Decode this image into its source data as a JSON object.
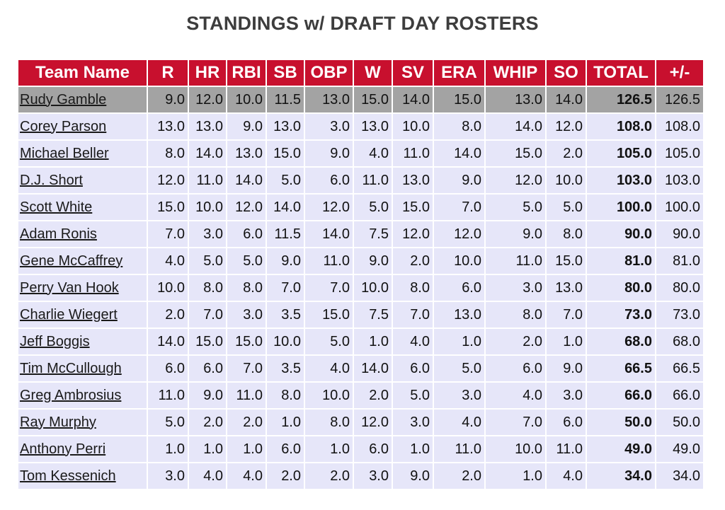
{
  "title": "STANDINGS w/ DRAFT DAY ROSTERS",
  "columns": [
    "Team Name",
    "R",
    "HR",
    "RBI",
    "SB",
    "OBP",
    "W",
    "SV",
    "ERA",
    "WHIP",
    "SO",
    "TOTAL",
    "+/-"
  ],
  "rows": [
    {
      "team": "Rudy Gamble",
      "vals": [
        "9.0",
        "12.0",
        "10.0",
        "11.5",
        "13.0",
        "15.0",
        "14.0",
        "15.0",
        "13.0",
        "14.0",
        "126.5",
        "126.5"
      ]
    },
    {
      "team": "Corey Parson",
      "vals": [
        "13.0",
        "13.0",
        "9.0",
        "13.0",
        "3.0",
        "13.0",
        "10.0",
        "8.0",
        "14.0",
        "12.0",
        "108.0",
        "108.0"
      ]
    },
    {
      "team": "Michael Beller",
      "vals": [
        "8.0",
        "14.0",
        "13.0",
        "15.0",
        "9.0",
        "4.0",
        "11.0",
        "14.0",
        "15.0",
        "2.0",
        "105.0",
        "105.0"
      ]
    },
    {
      "team": "D.J. Short",
      "vals": [
        "12.0",
        "11.0",
        "14.0",
        "5.0",
        "6.0",
        "11.0",
        "13.0",
        "9.0",
        "12.0",
        "10.0",
        "103.0",
        "103.0"
      ]
    },
    {
      "team": "Scott White",
      "vals": [
        "15.0",
        "10.0",
        "12.0",
        "14.0",
        "12.0",
        "5.0",
        "15.0",
        "7.0",
        "5.0",
        "5.0",
        "100.0",
        "100.0"
      ]
    },
    {
      "team": "Adam Ronis",
      "vals": [
        "7.0",
        "3.0",
        "6.0",
        "11.5",
        "14.0",
        "7.5",
        "12.0",
        "12.0",
        "9.0",
        "8.0",
        "90.0",
        "90.0"
      ]
    },
    {
      "team": "Gene McCaffrey",
      "vals": [
        "4.0",
        "5.0",
        "5.0",
        "9.0",
        "11.0",
        "9.0",
        "2.0",
        "10.0",
        "11.0",
        "15.0",
        "81.0",
        "81.0"
      ]
    },
    {
      "team": "Perry Van Hook",
      "vals": [
        "10.0",
        "8.0",
        "8.0",
        "7.0",
        "7.0",
        "10.0",
        "8.0",
        "6.0",
        "3.0",
        "13.0",
        "80.0",
        "80.0"
      ]
    },
    {
      "team": "Charlie Wiegert",
      "vals": [
        "2.0",
        "7.0",
        "3.0",
        "3.5",
        "15.0",
        "7.5",
        "7.0",
        "13.0",
        "8.0",
        "7.0",
        "73.0",
        "73.0"
      ]
    },
    {
      "team": "Jeff Boggis",
      "vals": [
        "14.0",
        "15.0",
        "15.0",
        "10.0",
        "5.0",
        "1.0",
        "4.0",
        "1.0",
        "2.0",
        "1.0",
        "68.0",
        "68.0"
      ]
    },
    {
      "team": "Tim McCullough",
      "vals": [
        "6.0",
        "6.0",
        "7.0",
        "3.5",
        "4.0",
        "14.0",
        "6.0",
        "5.0",
        "6.0",
        "9.0",
        "66.5",
        "66.5"
      ]
    },
    {
      "team": "Greg Ambrosius",
      "vals": [
        "11.0",
        "9.0",
        "11.0",
        "8.0",
        "10.0",
        "2.0",
        "5.0",
        "3.0",
        "4.0",
        "3.0",
        "66.0",
        "66.0"
      ]
    },
    {
      "team": "Ray Murphy",
      "vals": [
        "5.0",
        "2.0",
        "2.0",
        "1.0",
        "8.0",
        "12.0",
        "3.0",
        "4.0",
        "7.0",
        "6.0",
        "50.0",
        "50.0"
      ]
    },
    {
      "team": "Anthony Perri",
      "vals": [
        "1.0",
        "1.0",
        "1.0",
        "6.0",
        "1.0",
        "6.0",
        "1.0",
        "11.0",
        "10.0",
        "11.0",
        "49.0",
        "49.0"
      ]
    },
    {
      "team": "Tom Kessenich",
      "vals": [
        "3.0",
        "4.0",
        "4.0",
        "2.0",
        "2.0",
        "3.0",
        "9.0",
        "2.0",
        "1.0",
        "4.0",
        "34.0",
        "34.0"
      ]
    }
  ]
}
